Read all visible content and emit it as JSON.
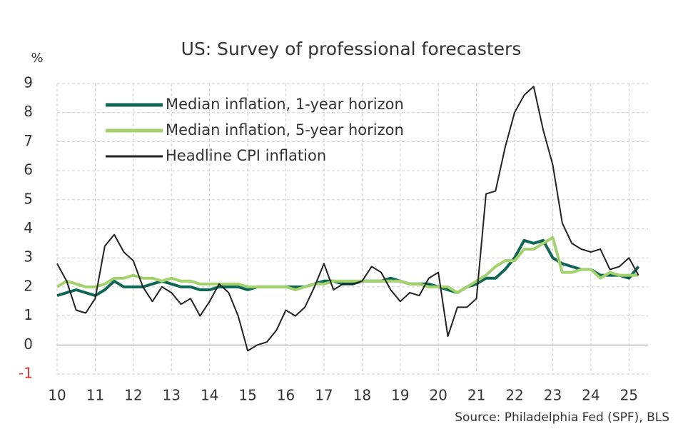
{
  "chart_data": {
    "type": "line",
    "title": "US: Survey of professional forecasters",
    "y_label": "%",
    "source": "Source: Philadelphia Fed (SPF), BLS",
    "x": [
      10,
      10.25,
      10.5,
      10.75,
      11,
      11.25,
      11.5,
      11.75,
      12,
      12.25,
      12.5,
      12.75,
      13,
      13.25,
      13.5,
      13.75,
      14,
      14.25,
      14.5,
      14.75,
      15,
      15.25,
      15.5,
      15.75,
      16,
      16.25,
      16.5,
      16.75,
      17,
      17.25,
      17.5,
      17.75,
      18,
      18.25,
      18.5,
      18.75,
      19,
      19.25,
      19.5,
      19.75,
      20,
      20.25,
      20.5,
      20.75,
      21,
      21.25,
      21.5,
      21.75,
      22,
      22.25,
      22.5,
      22.75,
      23,
      23.25,
      23.5,
      23.75,
      24,
      24.25,
      24.5,
      24.75,
      25,
      25.25
    ],
    "series": [
      {
        "name": "Median inflation, 1-year horizon",
        "color": "#0e6655",
        "width": 4,
        "values": [
          1.7,
          1.8,
          1.9,
          1.8,
          1.7,
          1.9,
          2.2,
          2.0,
          2.0,
          2.0,
          2.1,
          2.2,
          2.1,
          2.0,
          2.0,
          1.9,
          1.9,
          2.0,
          2.0,
          2.0,
          1.9,
          2.0,
          2.0,
          2.0,
          2.0,
          2.0,
          2.0,
          2.1,
          2.2,
          2.2,
          2.1,
          2.1,
          2.2,
          2.2,
          2.2,
          2.3,
          2.2,
          2.1,
          2.1,
          2.1,
          2.0,
          1.9,
          1.8,
          2.0,
          2.1,
          2.3,
          2.3,
          2.6,
          3.0,
          3.6,
          3.5,
          3.6,
          3.0,
          2.8,
          2.7,
          2.6,
          2.6,
          2.4,
          2.4,
          2.4,
          2.3,
          2.7
        ]
      },
      {
        "name": "Median inflation, 5-year horizon",
        "color": "#a3d16b",
        "width": 4,
        "values": [
          2.0,
          2.2,
          2.1,
          2.0,
          2.0,
          2.1,
          2.3,
          2.3,
          2.4,
          2.3,
          2.3,
          2.2,
          2.3,
          2.2,
          2.2,
          2.1,
          2.1,
          2.1,
          2.1,
          2.1,
          2.0,
          2.0,
          2.0,
          2.0,
          2.0,
          1.9,
          2.0,
          2.1,
          2.1,
          2.2,
          2.2,
          2.2,
          2.2,
          2.2,
          2.2,
          2.2,
          2.2,
          2.1,
          2.1,
          2.0,
          2.0,
          2.0,
          1.8,
          2.0,
          2.2,
          2.4,
          2.7,
          2.9,
          2.9,
          3.3,
          3.3,
          3.5,
          3.7,
          2.5,
          2.5,
          2.6,
          2.6,
          2.3,
          2.5,
          2.4,
          2.4,
          2.4
        ]
      },
      {
        "name": "Headline CPI inflation",
        "color": "#222222",
        "width": 2,
        "values": [
          2.8,
          2.2,
          1.2,
          1.1,
          1.6,
          3.4,
          3.8,
          3.2,
          2.9,
          2.0,
          1.5,
          2.0,
          1.8,
          1.4,
          1.6,
          1.0,
          1.5,
          2.1,
          1.8,
          1.0,
          -0.2,
          0.0,
          0.1,
          0.5,
          1.2,
          1.0,
          1.3,
          2.0,
          2.8,
          1.9,
          2.1,
          2.1,
          2.2,
          2.7,
          2.5,
          1.9,
          1.5,
          1.8,
          1.7,
          2.3,
          2.5,
          0.3,
          1.3,
          1.3,
          1.6,
          5.2,
          5.3,
          6.8,
          8.0,
          8.6,
          8.9,
          7.4,
          6.2,
          4.2,
          3.5,
          3.3,
          3.2,
          3.3,
          2.6,
          2.7,
          3.0,
          2.4
        ]
      }
    ],
    "xlim": [
      10,
      25.5
    ],
    "xticks": [
      10,
      11,
      12,
      13,
      14,
      15,
      16,
      17,
      18,
      19,
      20,
      21,
      22,
      23,
      24,
      25
    ],
    "ylim": [
      -1,
      9
    ],
    "yticks": [
      -1,
      0,
      1,
      2,
      3,
      4,
      5,
      6,
      7,
      8,
      9
    ],
    "grid": true,
    "negative_tick_color": "#e03030",
    "legend": "upper left"
  }
}
